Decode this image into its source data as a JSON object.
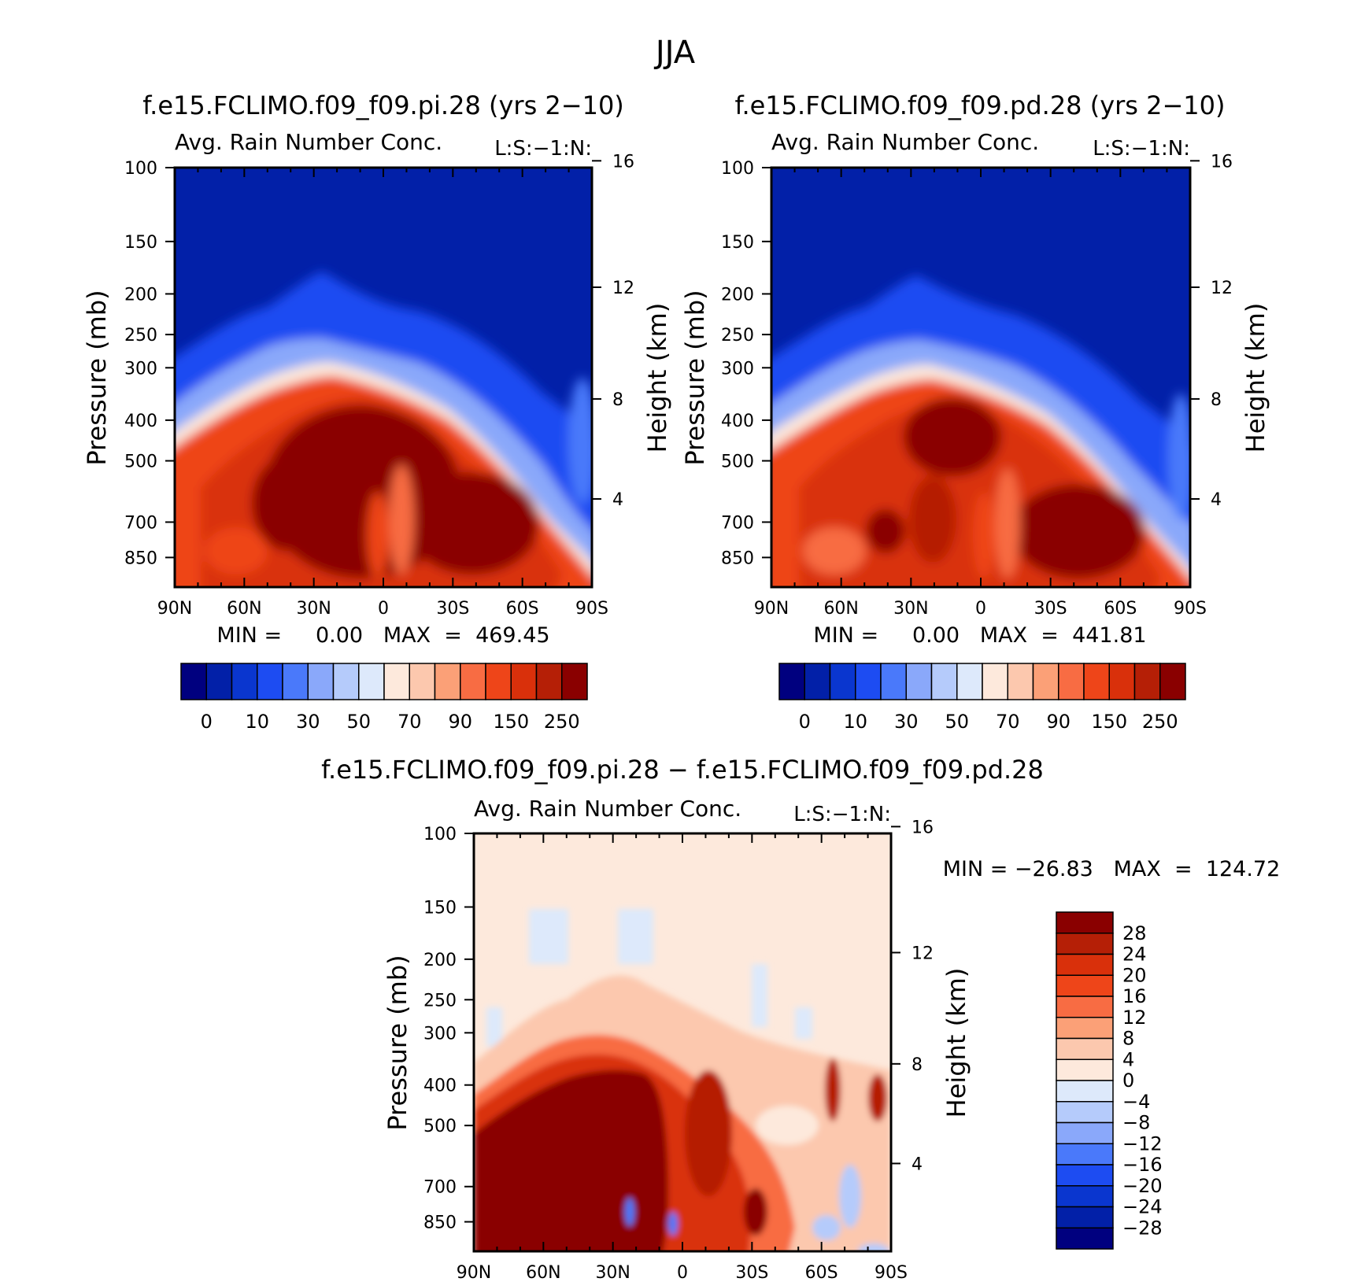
{
  "figure_title": "JJA",
  "chart_data": [
    {
      "type": "heatmap",
      "id": "panel_pi",
      "title": "f.e15.FCLIMO.f09_f09.pi.28 (yrs 2−10)",
      "subtitle": "Avg. Rain Number Conc.",
      "corner_label": "L:S:−1:N:",
      "xlabel": "",
      "ylabel": "Pressure (mb)",
      "ylabel_right": "Height (km)",
      "x_ticks": [
        "90N",
        "60N",
        "30N",
        "0",
        "30S",
        "60S",
        "90S"
      ],
      "x_range": [
        90,
        -90
      ],
      "y_ticks": [
        100,
        150,
        200,
        250,
        300,
        400,
        500,
        700,
        850
      ],
      "y_range": [
        100,
        1000
      ],
      "y_right_ticks": [
        16,
        12,
        8,
        4
      ],
      "min": "0.00",
      "max": "469.45",
      "stats_text": "MIN =     0.00   MAX  =  469.45",
      "colorbar": {
        "orientation": "horizontal",
        "labels": [
          "0",
          "10",
          "30",
          "50",
          "70",
          "90",
          "150",
          "250"
        ],
        "colors": [
          "#00007f",
          "#0220a8",
          "#0a36cf",
          "#1d4cf2",
          "#4a79fa",
          "#8aa8fa",
          "#b5cbfb",
          "#dde9fb",
          "#fde9dc",
          "#fcc8ae",
          "#fba077",
          "#f86c43",
          "#ee4519",
          "#d9300b",
          "#b51f06",
          "#8a0000"
        ]
      }
    },
    {
      "type": "heatmap",
      "id": "panel_pd",
      "title": "f.e15.FCLIMO.f09_f09.pd.28 (yrs 2−10)",
      "subtitle": "Avg. Rain Number Conc.",
      "corner_label": "L:S:−1:N:",
      "xlabel": "",
      "ylabel": "Pressure (mb)",
      "ylabel_right": "Height (km)",
      "x_ticks": [
        "90N",
        "60N",
        "30N",
        "0",
        "30S",
        "60S",
        "90S"
      ],
      "x_range": [
        90,
        -90
      ],
      "y_ticks": [
        100,
        150,
        200,
        250,
        300,
        400,
        500,
        700,
        850
      ],
      "y_range": [
        100,
        1000
      ],
      "y_right_ticks": [
        16,
        12,
        8,
        4
      ],
      "min": "0.00",
      "max": "441.81",
      "stats_text": "MIN =     0.00   MAX  =  441.81",
      "colorbar": {
        "orientation": "horizontal",
        "labels": [
          "0",
          "10",
          "30",
          "50",
          "70",
          "90",
          "150",
          "250"
        ],
        "colors": [
          "#00007f",
          "#0220a8",
          "#0a36cf",
          "#1d4cf2",
          "#4a79fa",
          "#8aa8fa",
          "#b5cbfb",
          "#dde9fb",
          "#fde9dc",
          "#fcc8ae",
          "#fba077",
          "#f86c43",
          "#ee4519",
          "#d9300b",
          "#b51f06",
          "#8a0000"
        ]
      }
    },
    {
      "type": "heatmap",
      "id": "panel_diff",
      "title": "f.e15.FCLIMO.f09_f09.pi.28 − f.e15.FCLIMO.f09_f09.pd.28",
      "subtitle": "Avg. Rain Number Conc.",
      "corner_label": "L:S:−1:N:",
      "xlabel": "",
      "ylabel": "Pressure (mb)",
      "ylabel_right": "Height (km)",
      "x_ticks": [
        "90N",
        "60N",
        "30N",
        "0",
        "30S",
        "60S",
        "90S"
      ],
      "x_range": [
        90,
        -90
      ],
      "y_ticks": [
        100,
        150,
        200,
        250,
        300,
        400,
        500,
        700,
        850
      ],
      "y_range": [
        100,
        1000
      ],
      "y_right_ticks": [
        16,
        12,
        8,
        4
      ],
      "min": "−26.83",
      "max": "124.72",
      "stats_text": "MIN = −26.83   MAX  =  124.72",
      "colorbar": {
        "orientation": "vertical",
        "labels": [
          "28",
          "24",
          "20",
          "16",
          "12",
          "8",
          "4",
          "0",
          "−4",
          "−8",
          "−12",
          "−16",
          "−20",
          "−24",
          "−28"
        ],
        "colors": [
          "#8a0000",
          "#b51f06",
          "#d9300b",
          "#ee4519",
          "#f86c43",
          "#fba077",
          "#fcc8ae",
          "#fde9dc",
          "#dde9fb",
          "#b5cbfb",
          "#8aa8fa",
          "#4a79fa",
          "#1d4cf2",
          "#0a36cf",
          "#0220a8",
          "#00007f"
        ]
      }
    }
  ]
}
